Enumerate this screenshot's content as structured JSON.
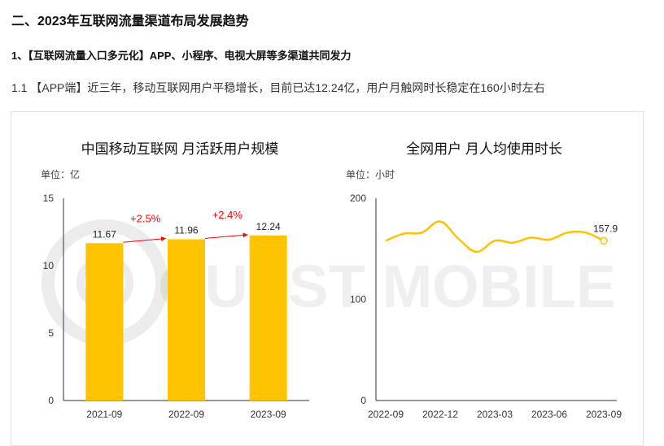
{
  "header": {
    "section_title": "二、2023年互联网流量渠道布局发展趋势",
    "subsection_title": "1、【互联网流量入口多元化】APP、小程序、电视大屏等多渠道共同发力",
    "paragraph": "1.1 【APP端】近三年，移动互联网用户平稳增长，目前已达12.24亿，用户月触网时长稳定在160小时左右"
  },
  "watermark": "QUEST MOBILE",
  "colors": {
    "bar": "#ffc300",
    "line": "#ffc000",
    "growth": "#ff0000",
    "axis": "#333333"
  },
  "chart_data": [
    {
      "type": "bar",
      "title": "中国移动互联网 月活跃用户规模",
      "unit_label": "单位：亿",
      "categories": [
        "2021-09",
        "2022-09",
        "2023-09"
      ],
      "values": [
        11.67,
        11.96,
        12.24
      ],
      "value_labels": [
        "11.67",
        "11.96",
        "12.24"
      ],
      "ylim": [
        0,
        15
      ],
      "yticks": [
        0,
        5,
        10,
        15
      ],
      "ytick_labels": [
        "0",
        "5",
        "10",
        "15"
      ],
      "growth_annotations": [
        {
          "from": 0,
          "to": 1,
          "label": "+2.5%"
        },
        {
          "from": 1,
          "to": 2,
          "label": "+2.4%"
        }
      ],
      "grid": false
    },
    {
      "type": "line",
      "title": "全网用户 月人均使用时长",
      "unit_label": "单位：小时",
      "x": [
        "2022-09",
        "2022-10",
        "2022-11",
        "2022-12",
        "2023-01",
        "2023-02",
        "2023-03",
        "2023-04",
        "2023-05",
        "2023-06",
        "2023-07",
        "2023-08",
        "2023-09"
      ],
      "x_tick_labels": [
        "2022-09",
        "2022-12",
        "2023-03",
        "2023-06",
        "2023-09"
      ],
      "x_tick_indices": [
        0,
        3,
        6,
        9,
        12
      ],
      "values": [
        158,
        165,
        166,
        177,
        160,
        147,
        158,
        156,
        161,
        159,
        166,
        166,
        157.9
      ],
      "last_value_label": "157.9",
      "ylim": [
        0,
        200
      ],
      "yticks": [
        0,
        100,
        200
      ],
      "ytick_labels": [
        "0",
        "100",
        "200"
      ],
      "grid": false
    }
  ]
}
